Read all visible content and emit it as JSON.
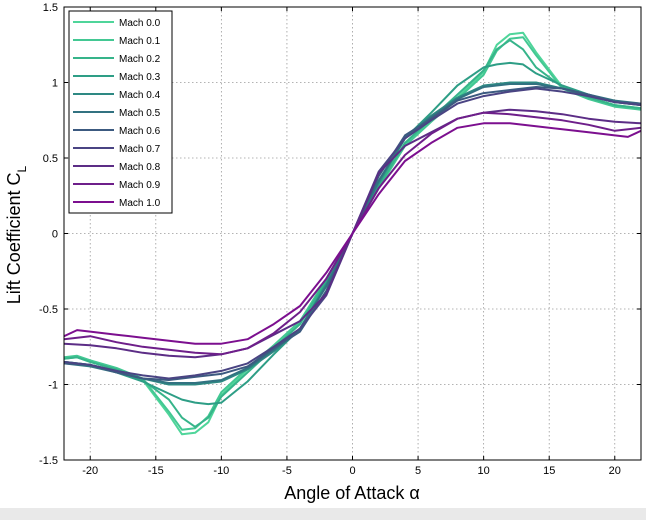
{
  "chart_data": {
    "type": "line",
    "xlabel": "Angle of Attack α",
    "ylabel": {
      "main": "Lift Coefficient C",
      "sub": "L"
    },
    "xlim": [
      -22,
      22
    ],
    "ylim": [
      -1.5,
      1.5
    ],
    "xticks": [
      -20,
      -15,
      -10,
      -5,
      0,
      5,
      10,
      15,
      20
    ],
    "yticks": [
      -1.5,
      -1,
      -0.5,
      0,
      0.5,
      1,
      1.5
    ],
    "ytick_labels": [
      "-1.5",
      "-1",
      "-0.5",
      "0",
      "0.5",
      "1",
      "1.5"
    ],
    "grid": true,
    "legend_position": "top-left",
    "series": [
      {
        "name": "Mach 0.0",
        "color": "#4fd59a",
        "x": [
          -22,
          -21,
          -20,
          -18,
          -16,
          -14,
          -13,
          -12,
          -11,
          -10,
          -8,
          -6,
          -4,
          -2,
          0,
          2,
          4,
          6,
          8,
          10,
          11,
          12,
          13,
          14,
          16,
          18,
          20,
          22
        ],
        "y": [
          -0.83,
          -0.82,
          -0.85,
          -0.9,
          -0.97,
          -1.2,
          -1.33,
          -1.32,
          -1.25,
          -1.07,
          -0.9,
          -0.75,
          -0.59,
          -0.3,
          0.0,
          0.3,
          0.59,
          0.75,
          0.9,
          1.07,
          1.25,
          1.32,
          1.33,
          1.2,
          0.97,
          0.9,
          0.85,
          0.83
        ]
      },
      {
        "name": "Mach 0.1",
        "color": "#43c893",
        "x": [
          -22,
          -21,
          -20,
          -18,
          -16,
          -14,
          -13,
          -12,
          -11,
          -10,
          -8,
          -6,
          -4,
          -2,
          0,
          2,
          4,
          6,
          8,
          10,
          11,
          12,
          13,
          14,
          16,
          18,
          20,
          22
        ],
        "y": [
          -0.82,
          -0.81,
          -0.84,
          -0.89,
          -0.96,
          -1.18,
          -1.3,
          -1.29,
          -1.21,
          -1.05,
          -0.89,
          -0.74,
          -0.58,
          -0.3,
          0.0,
          0.3,
          0.58,
          0.74,
          0.89,
          1.05,
          1.21,
          1.29,
          1.3,
          1.18,
          0.96,
          0.89,
          0.84,
          0.82
        ]
      },
      {
        "name": "Mach 0.2",
        "color": "#36b48a",
        "x": [
          -22,
          -21,
          -20,
          -18,
          -16,
          -14,
          -13,
          -12,
          -11,
          -10,
          -8,
          -6,
          -4,
          -2,
          0,
          2,
          4,
          6,
          8,
          10,
          11,
          12,
          13,
          14,
          16,
          18,
          20,
          22
        ],
        "y": [
          -0.83,
          -0.82,
          -0.85,
          -0.9,
          -0.97,
          -1.1,
          -1.22,
          -1.28,
          -1.22,
          -1.08,
          -0.92,
          -0.76,
          -0.6,
          -0.31,
          0.0,
          0.31,
          0.6,
          0.76,
          0.92,
          1.08,
          1.22,
          1.28,
          1.22,
          1.1,
          0.97,
          0.9,
          0.85,
          0.83
        ]
      },
      {
        "name": "Mach 0.3",
        "color": "#2e9e86",
        "x": [
          -22,
          -20,
          -18,
          -16,
          -14,
          -13,
          -12,
          -11,
          -10,
          -8,
          -6,
          -4,
          -2,
          0,
          2,
          4,
          6,
          8,
          10,
          11,
          12,
          13,
          14,
          16,
          18,
          20,
          22
        ],
        "y": [
          -0.85,
          -0.87,
          -0.92,
          -0.98,
          -1.06,
          -1.1,
          -1.12,
          -1.13,
          -1.12,
          -0.98,
          -0.8,
          -0.63,
          -0.33,
          0.0,
          0.33,
          0.63,
          0.8,
          0.98,
          1.1,
          1.12,
          1.13,
          1.12,
          1.06,
          0.98,
          0.92,
          0.87,
          0.85
        ]
      },
      {
        "name": "Mach 0.4",
        "color": "#2e8983",
        "x": [
          -22,
          -20,
          -18,
          -16,
          -14,
          -12,
          -10,
          -8,
          -6,
          -4,
          -2,
          0,
          2,
          4,
          6,
          8,
          10,
          12,
          14,
          16,
          18,
          20,
          22
        ],
        "y": [
          -0.85,
          -0.87,
          -0.91,
          -0.96,
          -1.0,
          -1.0,
          -0.98,
          -0.9,
          -0.78,
          -0.64,
          -0.34,
          0.0,
          0.34,
          0.64,
          0.78,
          0.9,
          0.98,
          1.0,
          1.0,
          0.96,
          0.91,
          0.87,
          0.85
        ]
      },
      {
        "name": "Mach 0.5",
        "color": "#327281",
        "x": [
          -22,
          -20,
          -18,
          -16,
          -14,
          -12,
          -10,
          -8,
          -6,
          -4,
          -2,
          0,
          2,
          4,
          6,
          8,
          10,
          12,
          14,
          16,
          18,
          20,
          22
        ],
        "y": [
          -0.86,
          -0.88,
          -0.92,
          -0.96,
          -0.99,
          -0.99,
          -0.97,
          -0.89,
          -0.77,
          -0.63,
          -0.35,
          0.0,
          0.35,
          0.63,
          0.77,
          0.89,
          0.97,
          0.99,
          0.99,
          0.96,
          0.92,
          0.88,
          0.86
        ]
      },
      {
        "name": "Mach 0.6",
        "color": "#3c5a80",
        "x": [
          -22,
          -20,
          -18,
          -16,
          -14,
          -12,
          -10,
          -8,
          -6,
          -4,
          -2,
          0,
          2,
          4,
          6,
          8,
          10,
          12,
          14,
          16,
          18,
          20,
          22
        ],
        "y": [
          -0.86,
          -0.87,
          -0.92,
          -0.96,
          -0.97,
          -0.95,
          -0.93,
          -0.88,
          -0.76,
          -0.65,
          -0.38,
          0.0,
          0.38,
          0.65,
          0.76,
          0.88,
          0.93,
          0.95,
          0.97,
          0.96,
          0.92,
          0.87,
          0.86
        ]
      },
      {
        "name": "Mach 0.7",
        "color": "#4a4483",
        "x": [
          -22,
          -20,
          -18,
          -16,
          -14,
          -12,
          -10,
          -8,
          -6,
          -4,
          -2,
          0,
          2,
          4,
          6,
          8,
          10,
          12,
          14,
          16,
          18,
          20,
          22
        ],
        "y": [
          -0.85,
          -0.87,
          -0.91,
          -0.94,
          -0.96,
          -0.94,
          -0.91,
          -0.86,
          -0.75,
          -0.63,
          -0.41,
          0.0,
          0.41,
          0.63,
          0.75,
          0.86,
          0.91,
          0.94,
          0.96,
          0.94,
          0.91,
          0.87,
          0.85
        ]
      },
      {
        "name": "Mach 0.8",
        "color": "#5c2d86",
        "x": [
          -22,
          -20,
          -18,
          -16,
          -14,
          -12,
          -10,
          -8,
          -6,
          -4,
          -2,
          0,
          2,
          4,
          6,
          8,
          10,
          12,
          14,
          16,
          18,
          20,
          22
        ],
        "y": [
          -0.73,
          -0.74,
          -0.76,
          -0.79,
          -0.81,
          -0.82,
          -0.8,
          -0.76,
          -0.67,
          -0.58,
          -0.4,
          0.0,
          0.4,
          0.58,
          0.67,
          0.76,
          0.8,
          0.82,
          0.81,
          0.79,
          0.76,
          0.74,
          0.73
        ]
      },
      {
        "name": "Mach 0.9",
        "color": "#6e1f8a",
        "x": [
          -22,
          -20,
          -18,
          -16,
          -14,
          -12,
          -10,
          -8,
          -6,
          -4,
          -2,
          0,
          2,
          4,
          6,
          8,
          10,
          12,
          14,
          16,
          18,
          20,
          22
        ],
        "y": [
          -0.7,
          -0.68,
          -0.72,
          -0.75,
          -0.77,
          -0.79,
          -0.8,
          -0.76,
          -0.66,
          -0.52,
          -0.3,
          0.0,
          0.3,
          0.52,
          0.66,
          0.76,
          0.8,
          0.79,
          0.77,
          0.75,
          0.72,
          0.68,
          0.7
        ]
      },
      {
        "name": "Mach 1.0",
        "color": "#7c0f8f",
        "x": [
          -22,
          -21,
          -20,
          -18,
          -16,
          -14,
          -12,
          -10,
          -8,
          -6,
          -4,
          -2,
          0,
          2,
          4,
          6,
          8,
          10,
          12,
          14,
          16,
          18,
          20,
          21,
          22
        ],
        "y": [
          -0.68,
          -0.64,
          -0.65,
          -0.67,
          -0.69,
          -0.71,
          -0.73,
          -0.73,
          -0.7,
          -0.6,
          -0.48,
          -0.26,
          0.0,
          0.26,
          0.48,
          0.6,
          0.7,
          0.73,
          0.73,
          0.71,
          0.69,
          0.67,
          0.65,
          0.64,
          0.68
        ]
      }
    ]
  }
}
